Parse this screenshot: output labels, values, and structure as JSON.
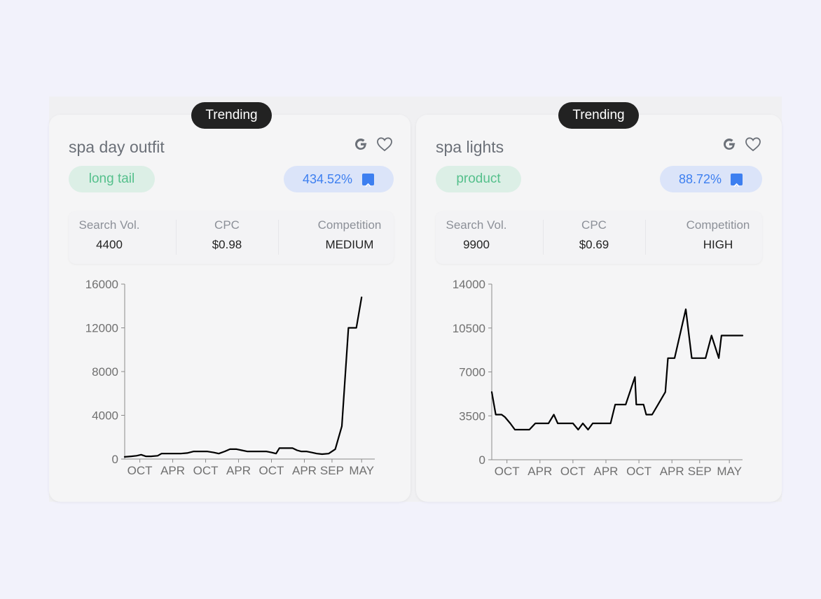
{
  "cards": [
    {
      "badge": "Trending",
      "title": "spa day outfit",
      "tag": "long tail",
      "growth": "434.52%",
      "stats": [
        {
          "label": "Search Vol.",
          "value": "4400"
        },
        {
          "label": "CPC",
          "value": "$0.98"
        },
        {
          "label": "Competition",
          "value": "MEDIUM"
        }
      ],
      "icons": {
        "search_engine": "google-g-icon",
        "favorite": "heart-icon",
        "trend": "arrow-up-icon"
      },
      "chart_data": {
        "type": "line",
        "y_ticks": [
          "16000",
          "12000",
          "8000",
          "4000",
          "0"
        ],
        "ylim": [
          0,
          16000
        ],
        "x_labels": [
          "OCT",
          "APR",
          "OCT",
          "APR",
          "OCT",
          "APR",
          "SEP",
          "MAY"
        ],
        "x_label_positions": [
          2.3,
          7.3,
          12.3,
          17.3,
          22.3,
          27.3,
          31.5,
          36
        ],
        "x_range": [
          0,
          38
        ],
        "values": [
          200,
          250,
          300,
          400,
          250,
          250,
          300,
          500,
          500,
          500,
          500,
          550,
          700,
          700,
          700,
          600,
          500,
          700,
          900,
          900,
          800,
          700,
          700,
          700,
          700,
          600,
          500,
          1000,
          1000,
          1000,
          800,
          700,
          700,
          600,
          500,
          450,
          500,
          900,
          3000,
          12000,
          12000,
          14800
        ],
        "x": [
          0,
          1,
          1.8,
          2.5,
          3.2,
          4,
          5,
          5.6,
          6.5,
          7.5,
          8.5,
          9.5,
          10.5,
          11.5,
          12.5,
          13.5,
          14.3,
          15.2,
          16,
          17,
          17.8,
          18.6,
          19.5,
          20.5,
          21.5,
          22.3,
          23,
          23.5,
          24.5,
          25.5,
          26.2,
          26.8,
          27.6,
          28.4,
          29.2,
          30,
          31,
          32,
          33,
          34,
          35.2,
          36
        ]
      }
    },
    {
      "badge": "Trending",
      "title": "spa lights",
      "tag": "product",
      "growth": "88.72%",
      "stats": [
        {
          "label": "Search Vol.",
          "value": "9900"
        },
        {
          "label": "CPC",
          "value": "$0.69"
        },
        {
          "label": "Competition",
          "value": "HIGH"
        }
      ],
      "icons": {
        "search_engine": "google-g-icon",
        "favorite": "heart-icon",
        "trend": "arrow-up-icon"
      },
      "chart_data": {
        "type": "line",
        "y_ticks": [
          "14000",
          "10500",
          "7000",
          "3500",
          "0"
        ],
        "ylim": [
          0,
          14000
        ],
        "x_labels": [
          "OCT",
          "APR",
          "OCT",
          "APR",
          "OCT",
          "APR",
          "SEP",
          "MAY"
        ],
        "x_label_positions": [
          2.3,
          7.3,
          12.3,
          17.3,
          22.3,
          27.3,
          31.5,
          36
        ],
        "x_range": [
          0,
          38
        ],
        "values": [
          5400,
          3600,
          3600,
          3400,
          2900,
          2400,
          2400,
          2400,
          2900,
          2900,
          2900,
          3600,
          2900,
          2900,
          2900,
          2400,
          2900,
          2400,
          2900,
          2900,
          2900,
          4400,
          4400,
          6600,
          4400,
          4400,
          3600,
          3600,
          4400,
          5400,
          8100,
          8100,
          12000,
          8100,
          8100,
          8100,
          9900,
          8100,
          9900,
          9900,
          9900,
          9900
        ],
        "x": [
          0,
          0.6,
          1.5,
          2,
          2.8,
          3.5,
          4.5,
          5.7,
          6.6,
          7.5,
          8.6,
          9.4,
          10,
          11,
          12.3,
          13.1,
          13.8,
          14.6,
          15.3,
          16.5,
          18,
          18.7,
          20.3,
          21.7,
          21.9,
          23,
          23.4,
          24.3,
          25.2,
          26.3,
          26.7,
          27.7,
          29.4,
          30.3,
          32,
          32.4,
          33.3,
          34.4,
          34.8,
          35.5,
          36.5,
          38
        ]
      }
    }
  ]
}
